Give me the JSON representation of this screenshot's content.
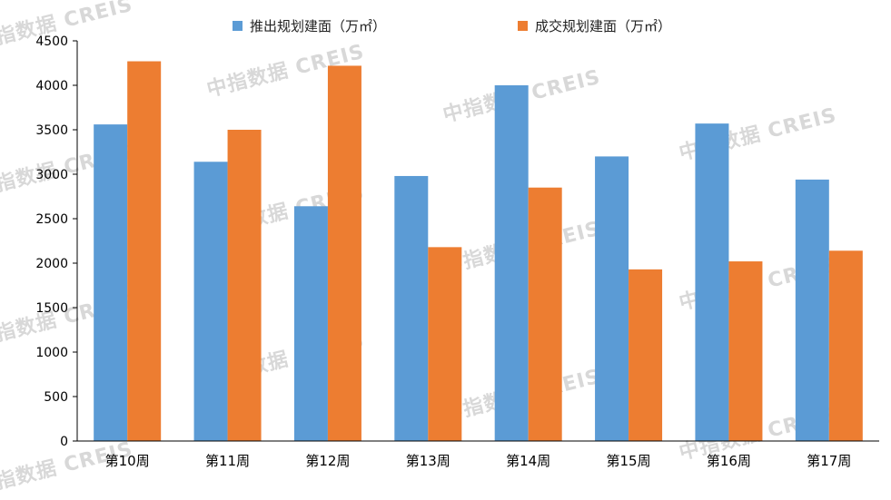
{
  "chart_data": {
    "type": "bar",
    "categories": [
      "第10周",
      "第11周",
      "第12周",
      "第13周",
      "第14周",
      "第15周",
      "第16周",
      "第17周"
    ],
    "series": [
      {
        "name": "推出规划建面（万㎡）",
        "color": "#5B9BD5",
        "values": [
          3560,
          3140,
          2640,
          2980,
          4000,
          3200,
          3570,
          2940
        ]
      },
      {
        "name": "成交规划建面（万㎡）",
        "color": "#ED7D31",
        "values": [
          4270,
          3500,
          4220,
          2180,
          2850,
          1930,
          2020,
          2140
        ]
      }
    ],
    "yticks": [
      "0",
      "500",
      "1000",
      "1500",
      "2000",
      "2500",
      "3000",
      "3500",
      "4000",
      "4500"
    ],
    "ylim": [
      0,
      4500
    ],
    "legend_position": "top",
    "grid": false
  },
  "watermark_text": "中指数据 CREIS"
}
